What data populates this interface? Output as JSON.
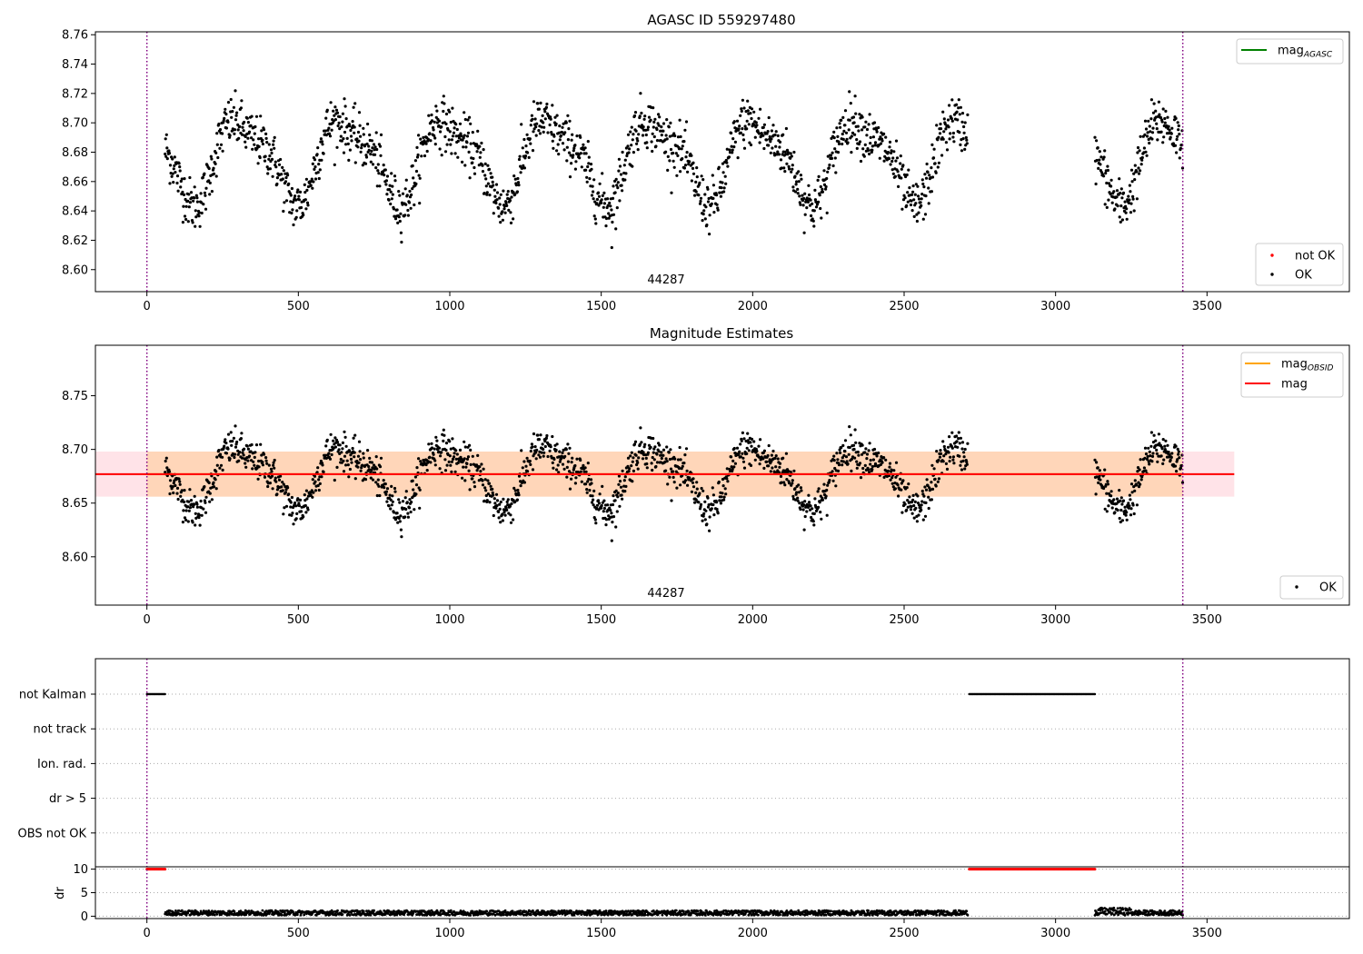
{
  "chart_data": [
    {
      "type": "scatter",
      "title": "AGASC ID 559297480",
      "xlim": [
        -170,
        3970
      ],
      "ylim": [
        8.585,
        8.762
      ],
      "x_ticks": [
        0,
        500,
        1000,
        1500,
        2000,
        2500,
        3000,
        3500
      ],
      "y_ticks": [
        8.6,
        8.62,
        8.64,
        8.66,
        8.68,
        8.7,
        8.72,
        8.74,
        8.76
      ],
      "y_tick_labels": [
        "8.60",
        "8.62",
        "8.64",
        "8.66",
        "8.68",
        "8.70",
        "8.72",
        "8.74",
        "8.76"
      ],
      "obsid_label": "44287",
      "obsid_boundaries": [
        0,
        3420
      ],
      "series": [
        {
          "name": "OK",
          "color": "#000000",
          "marker": "dot"
        },
        {
          "name": "not OK",
          "color": "#ff0000",
          "marker": "dot"
        }
      ],
      "legend_lines": [
        {
          "label": "mag",
          "sub": "AGASC",
          "color": "#008000"
        }
      ],
      "legend_markers": [
        {
          "label": "not OK",
          "color": "#ff0000"
        },
        {
          "label": "OK",
          "color": "#000000"
        }
      ],
      "legend_upper": "top-right",
      "legend_lower": "bottom-right"
    },
    {
      "type": "scatter",
      "title": "Magnitude Estimates",
      "xlim": [
        -170,
        3970
      ],
      "ylim": [
        8.555,
        8.797
      ],
      "x_ticks": [
        0,
        500,
        1000,
        1500,
        2000,
        2500,
        3000,
        3500
      ],
      "y_ticks": [
        8.6,
        8.65,
        8.7,
        8.75
      ],
      "y_tick_labels": [
        "8.60",
        "8.65",
        "8.70",
        "8.75"
      ],
      "obsid_label": "44287",
      "obsid_boundaries": [
        0,
        3420
      ],
      "mag_mean": 8.677,
      "mag_band": [
        8.656,
        8.698
      ],
      "band_x_range": [
        -170,
        3590
      ],
      "legend_lines": [
        {
          "label": "mag",
          "sub": "OBSID",
          "color": "#ffa500"
        },
        {
          "label": "mag",
          "sub": "",
          "color": "#ff0000"
        }
      ],
      "legend_markers": [
        {
          "label": "OK",
          "color": "#000000"
        }
      ],
      "legend_upper": "top-right",
      "legend_lower": "bottom-right"
    },
    {
      "type": "scatter",
      "title": "",
      "xlim": [
        -170,
        3970
      ],
      "x_ticks": [
        0,
        500,
        1000,
        1500,
        2000,
        2500,
        3000,
        3500
      ],
      "flag_categories": [
        "not Kalman",
        "not track",
        "Ion. rad.",
        "dr > 5",
        "OBS not OK"
      ],
      "flag_intervals": [
        {
          "category": "not Kalman",
          "ranges": [
            [
              0,
              60
            ],
            [
              2715,
              3130
            ]
          ]
        }
      ],
      "dr_ylabel": "dr",
      "dr_ylim": [
        -0.5,
        10.5
      ],
      "dr_ticks": [
        0,
        5,
        10
      ],
      "dr_clipped_value": 10,
      "dr_clipped_color": "#ff0000",
      "dr_clipped_ranges": [
        [
          0,
          60
        ],
        [
          2715,
          3130
        ]
      ],
      "dr_typical_range": [
        0.2,
        1.4
      ],
      "obsid_boundaries": [
        0,
        3420
      ]
    }
  ]
}
